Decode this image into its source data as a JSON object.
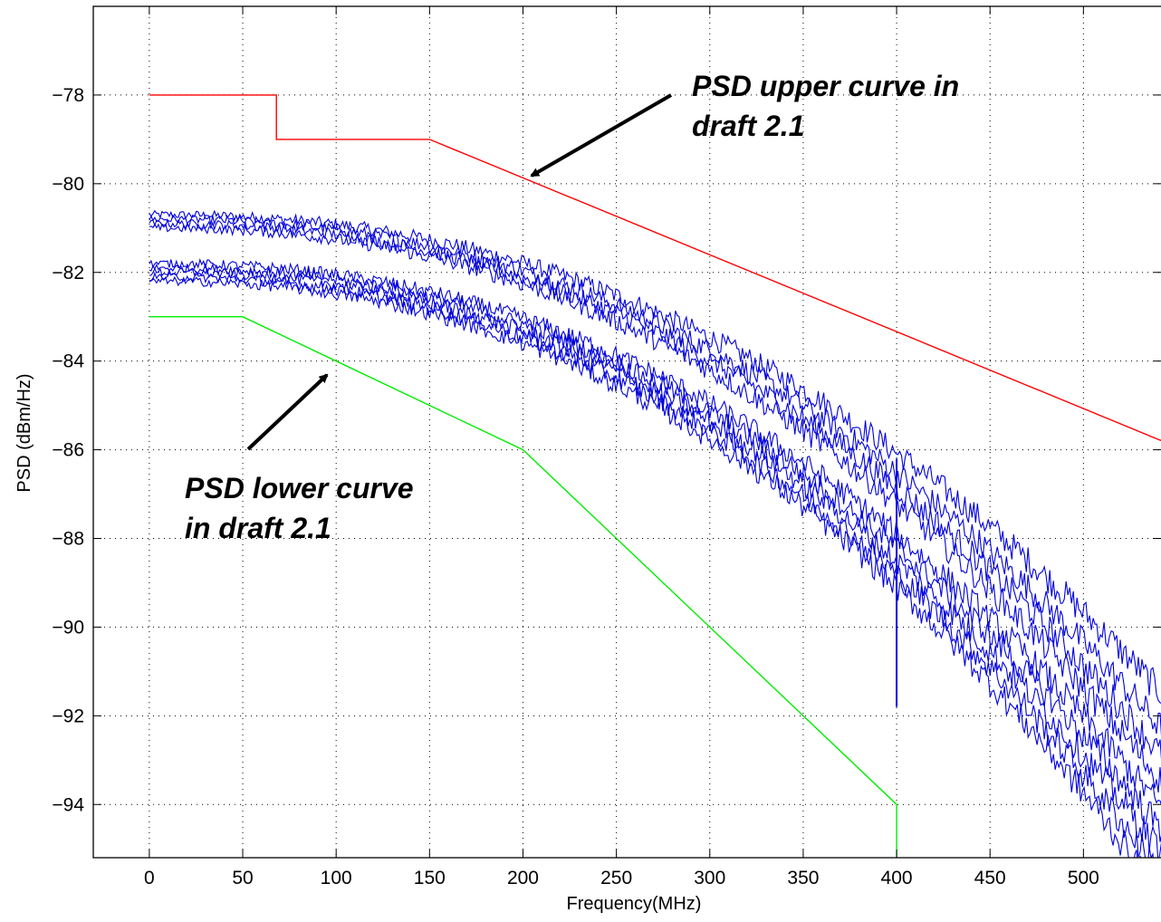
{
  "chart_data": {
    "type": "line",
    "title": "",
    "xlabel": "Frequency(MHz)",
    "ylabel": "PSD (dBm/Hz)",
    "xlim": [
      -30,
      542
    ],
    "ylim": [
      -95.2,
      -76
    ],
    "xticks": [
      0,
      50,
      100,
      150,
      200,
      250,
      300,
      350,
      400,
      450,
      500
    ],
    "yticks": [
      -94,
      -92,
      -90,
      -88,
      -86,
      -84,
      -82,
      -80,
      -78
    ],
    "grid": true,
    "colors": {
      "upper": "#ff0000",
      "lower": "#00ee00",
      "measured": "#0000dd"
    },
    "series": [
      {
        "key": "upper",
        "x": [
          0,
          68,
          68,
          150,
          542
        ],
        "y": [
          -78,
          -78,
          -79,
          -79,
          -85.8
        ]
      },
      {
        "key": "lower",
        "x": [
          0,
          50,
          200,
          400,
          400
        ],
        "y": [
          -83,
          -83,
          -86,
          -94,
          -95.2
        ]
      }
    ],
    "measured_curves": {
      "x_range": [
        0,
        542
      ],
      "start_values": [
        -80.7,
        -80.8,
        -80.9,
        -81.0,
        -81.8,
        -81.9,
        -82.0,
        -82.1,
        -82.2
      ],
      "end_values_at_542": [
        -91.5,
        -92.3,
        -92.9,
        -93.5,
        -94.1,
        -94.6,
        -95.1,
        -95.6,
        -96.1
      ],
      "spike_at_x": 400
    },
    "annotations": [
      {
        "text_lines": [
          "PSD upper curve in",
          "draft 2.1"
        ],
        "points_to": [
          200,
          -79.9
        ]
      },
      {
        "text_lines": [
          "PSD lower curve",
          "in draft 2.1"
        ],
        "points_to": [
          92,
          -84.2
        ]
      }
    ]
  }
}
